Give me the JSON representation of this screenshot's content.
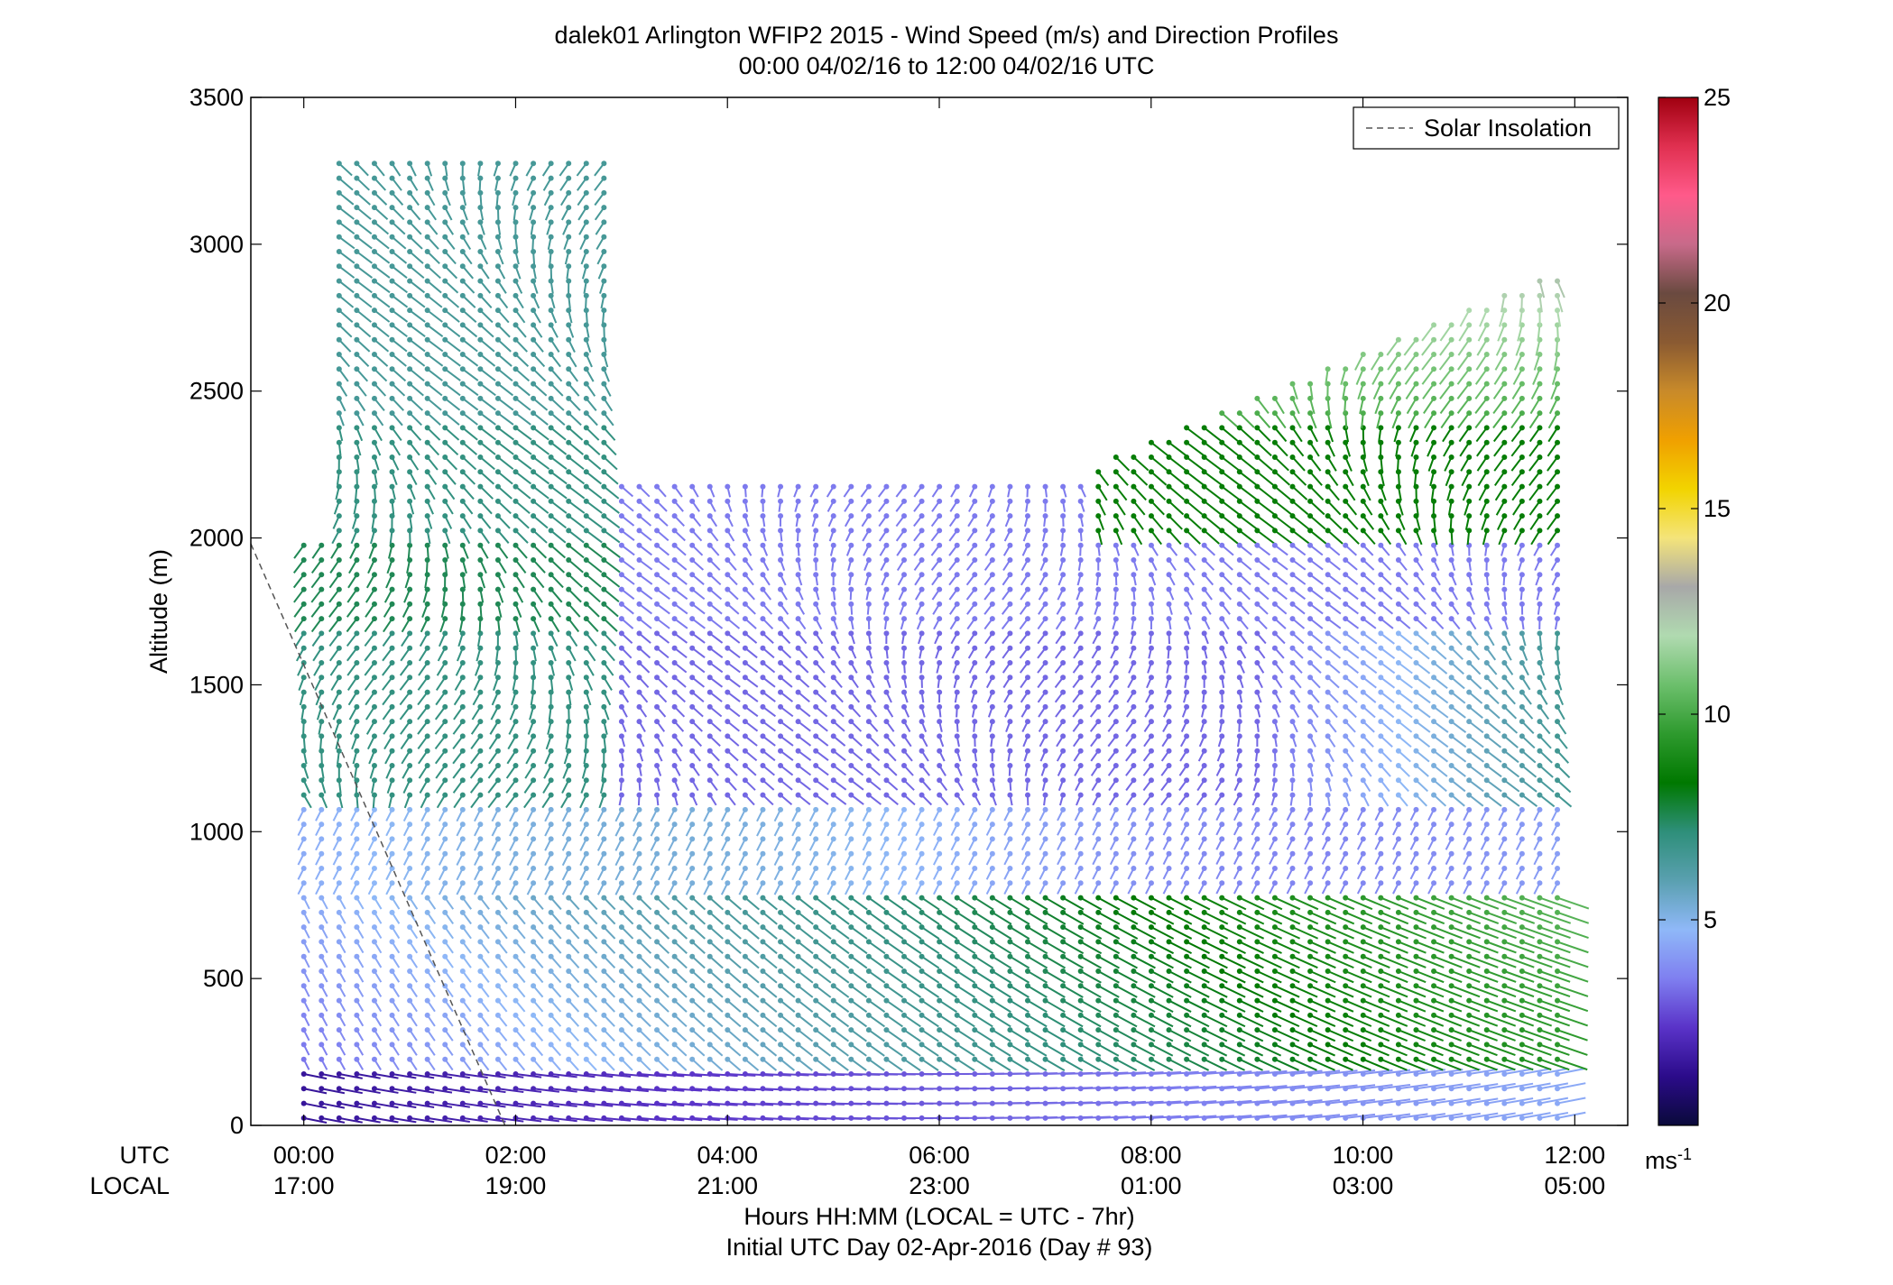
{
  "chart_data": {
    "type": "wind_barb_profile",
    "title": "dalek01 Arlington WFIP2 2015 - Wind Speed (m/s) and Direction Profiles",
    "subtitle": "00:00 04/02/16 to 12:00 04/02/16  UTC",
    "ylabel": "Altitude (m)",
    "xlabel": "Hours HH:MM  (LOCAL = UTC - 7hr)",
    "xlabel2": "Initial UTC Day 02-Apr-2016 (Day # 93)",
    "x_row_labels": [
      "UTC",
      "LOCAL"
    ],
    "ylim": [
      0,
      3500
    ],
    "xlim_hours": [
      -0.5,
      12.5
    ],
    "y_ticks": [
      0,
      500,
      1000,
      1500,
      2000,
      2500,
      3000,
      3500
    ],
    "x_ticks_hours": [
      0,
      2,
      4,
      6,
      8,
      10,
      12
    ],
    "x_tick_labels_utc": [
      "00:00",
      "02:00",
      "04:00",
      "06:00",
      "08:00",
      "10:00",
      "12:00"
    ],
    "x_tick_labels_local": [
      "17:00",
      "19:00",
      "21:00",
      "23:00",
      "01:00",
      "03:00",
      "05:00"
    ],
    "legend": {
      "entries": [
        "Solar Insolation"
      ],
      "position": "top-right"
    },
    "colorbar": {
      "range": [
        0,
        25
      ],
      "ticks": [
        5,
        10,
        15,
        20,
        25
      ],
      "unit_label": "ms",
      "unit_exp": "-1",
      "colors": [
        "#0a0a3a",
        "#2b0b8a",
        "#5a33c8",
        "#7f7ff0",
        "#8fb8f8",
        "#5aa0b0",
        "#2e8f7a",
        "#007800",
        "#2e9a2e",
        "#6cbf6c",
        "#b0dab0",
        "#a8a8a8",
        "#f4e47a",
        "#f2d400",
        "#f0a000",
        "#c88a2a",
        "#8a5a32",
        "#6a4a40",
        "#c86a8a",
        "#ff5a8a",
        "#e03050",
        "#a00010"
      ]
    },
    "solar_insolation_line": {
      "start": [
        -0.5,
        1980
      ],
      "end": [
        1.9,
        0
      ]
    },
    "time_step_hours": 0.1667,
    "altitude_step_m": 50,
    "notes_on_fields": "Wind barbs are drawn at each time/altitude sample; color = speed (m/s), line direction = wind direction."
  }
}
